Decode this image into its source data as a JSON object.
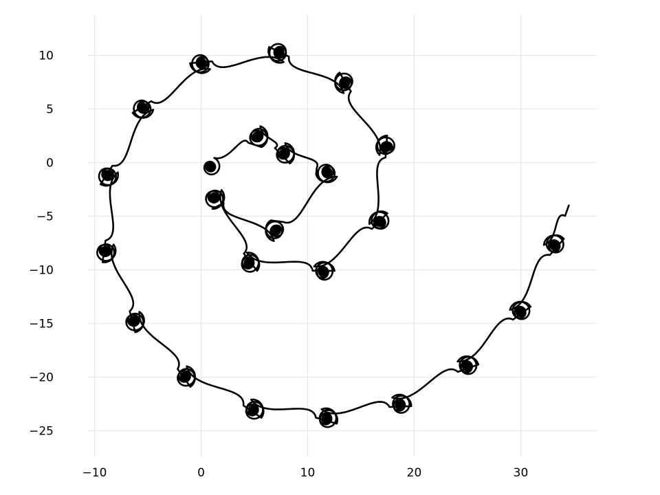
{
  "chart_data": {
    "type": "line",
    "title": "",
    "xlabel": "",
    "ylabel": "",
    "xlim": [
      -11,
      37
    ],
    "ylim": [
      -27.5,
      13.5
    ],
    "grid": true,
    "legend": "none",
    "line_color": "#000000",
    "grid_color": "#e6e6e6",
    "xticks": [
      -10,
      0,
      10,
      20,
      30
    ],
    "yticks": [
      10,
      5,
      0,
      -5,
      -10,
      -15,
      -20,
      -25
    ],
    "xtick_labels": [
      "−10",
      "0",
      "10",
      "20",
      "30"
    ],
    "ytick_labels": [
      "10",
      "5",
      "0",
      "−5",
      "−10",
      "−15",
      "−20",
      "−25"
    ],
    "series": [
      {
        "x": [
          0.9,
          5.3,
          7.8,
          11.8,
          7.0,
          1.2,
          4.5,
          11.5,
          16.8,
          17.4,
          13.5,
          7.3,
          0.0,
          -5.5,
          -8.8,
          -9.0,
          -6.3,
          -1.5,
          4.9,
          11.8,
          18.7,
          25.0,
          30.0,
          33.2,
          34.5
        ],
        "y": [
          -0.4,
          2.4,
          0.8,
          -0.9,
          -6.3,
          -3.3,
          -9.4,
          -10.2,
          -5.5,
          1.5,
          7.5,
          10.3,
          9.3,
          5.1,
          -1.2,
          -8.3,
          -14.8,
          -20.0,
          -23.1,
          -23.9,
          -22.6,
          -19.0,
          -13.9,
          -7.7,
          -4.0
        ]
      }
    ]
  }
}
